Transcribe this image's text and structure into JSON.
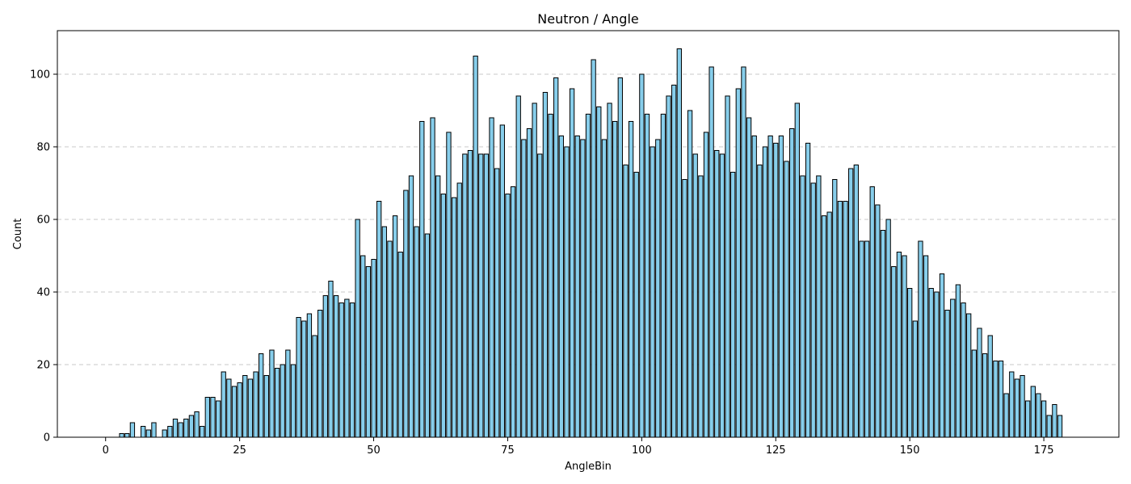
{
  "colors": {
    "bar_fill": "#87ceeb",
    "bar_edge": "#000000",
    "grid": "#c8c8c8"
  },
  "chart_data": {
    "type": "bar",
    "title": "Neutron / Angle",
    "xlabel": "AngleBin",
    "ylabel": "Count",
    "xlim": [
      -9,
      189
    ],
    "ylim": [
      0,
      112
    ],
    "xticks": [
      0,
      25,
      50,
      75,
      100,
      125,
      150,
      175
    ],
    "yticks": [
      0,
      20,
      40,
      60,
      80,
      100
    ],
    "grid": "y-dashed",
    "x": [
      0,
      1,
      2,
      3,
      4,
      5,
      6,
      7,
      8,
      9,
      10,
      11,
      12,
      13,
      14,
      15,
      16,
      17,
      18,
      19,
      20,
      21,
      22,
      23,
      24,
      25,
      26,
      27,
      28,
      29,
      30,
      31,
      32,
      33,
      34,
      35,
      36,
      37,
      38,
      39,
      40,
      41,
      42,
      43,
      44,
      45,
      46,
      47,
      48,
      49,
      50,
      51,
      52,
      53,
      54,
      55,
      56,
      57,
      58,
      59,
      60,
      61,
      62,
      63,
      64,
      65,
      66,
      67,
      68,
      69,
      70,
      71,
      72,
      73,
      74,
      75,
      76,
      77,
      78,
      79,
      80,
      81,
      82,
      83,
      84,
      85,
      86,
      87,
      88,
      89,
      90,
      91,
      92,
      93,
      94,
      95,
      96,
      97,
      98,
      99,
      100,
      101,
      102,
      103,
      104,
      105,
      106,
      107,
      108,
      109,
      110,
      111,
      112,
      113,
      114,
      115,
      116,
      117,
      118,
      119,
      120,
      121,
      122,
      123,
      124,
      125,
      126,
      127,
      128,
      129,
      130,
      131,
      132,
      133,
      134,
      135,
      136,
      137,
      138,
      139,
      140,
      141,
      142,
      143,
      144,
      145,
      146,
      147,
      148,
      149,
      150,
      151,
      152,
      153,
      154,
      155,
      156,
      157,
      158,
      159,
      160,
      161,
      162,
      163,
      164,
      165,
      166,
      167,
      168,
      169,
      170,
      171,
      172,
      173,
      174,
      175,
      176,
      177,
      178
    ],
    "values": [
      0,
      0,
      0,
      1,
      1,
      4,
      0,
      3,
      2,
      4,
      0,
      2,
      3,
      5,
      4,
      5,
      6,
      7,
      3,
      11,
      11,
      10,
      18,
      16,
      14,
      15,
      17,
      16,
      18,
      23,
      17,
      24,
      19,
      20,
      24,
      20,
      33,
      32,
      34,
      28,
      35,
      39,
      43,
      39,
      37,
      38,
      37,
      60,
      50,
      47,
      49,
      65,
      58,
      54,
      61,
      51,
      68,
      72,
      58,
      87,
      56,
      88,
      72,
      67,
      84,
      66,
      70,
      78,
      79,
      105,
      78,
      78,
      88,
      74,
      86,
      67,
      69,
      94,
      82,
      85,
      92,
      78,
      95,
      89,
      99,
      83,
      80,
      96,
      83,
      82,
      89,
      104,
      91,
      82,
      92,
      87,
      99,
      75,
      87,
      73,
      100,
      89,
      80,
      82,
      89,
      94,
      97,
      107,
      71,
      90,
      78,
      72,
      84,
      102,
      79,
      78,
      94,
      73,
      96,
      102,
      88,
      83,
      75,
      80,
      83,
      81,
      83,
      76,
      85,
      92,
      72,
      81,
      70,
      72,
      61,
      62,
      71,
      65,
      65,
      74,
      75,
      54,
      54,
      69,
      64,
      57,
      60,
      47,
      51,
      50,
      41,
      32,
      54,
      50,
      41,
      40,
      45,
      35,
      38,
      42,
      37,
      34,
      24,
      30,
      23,
      28,
      21,
      21,
      12,
      18,
      16,
      17,
      10,
      14,
      12,
      10,
      6,
      9,
      6
    ]
  }
}
